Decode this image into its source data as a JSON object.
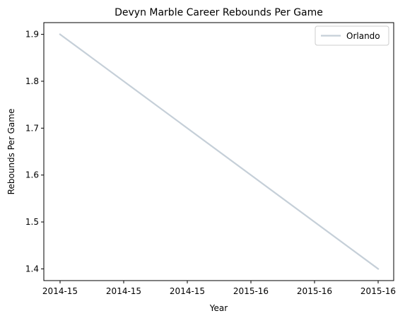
{
  "chart_data": {
    "type": "line",
    "title": "Devyn Marble Career Rebounds Per Game",
    "xlabel": "Year",
    "ylabel": "Rebounds Per Game",
    "x_tick_labels": [
      "2014-15",
      "2014-15",
      "2014-15",
      "2015-16",
      "2015-16",
      "2015-16"
    ],
    "x_range": [
      0,
      1
    ],
    "y_ticks": [
      "1.4",
      "1.5",
      "1.6",
      "1.7",
      "1.8",
      "1.9"
    ],
    "ylim": [
      1.375,
      1.925
    ],
    "grid": false,
    "legend_position": "top-right",
    "series": [
      {
        "name": "Orlando",
        "color": "#c5cfd8",
        "points": [
          {
            "x": 0,
            "y": 1.9
          },
          {
            "x": 1,
            "y": 1.4
          }
        ]
      }
    ]
  }
}
